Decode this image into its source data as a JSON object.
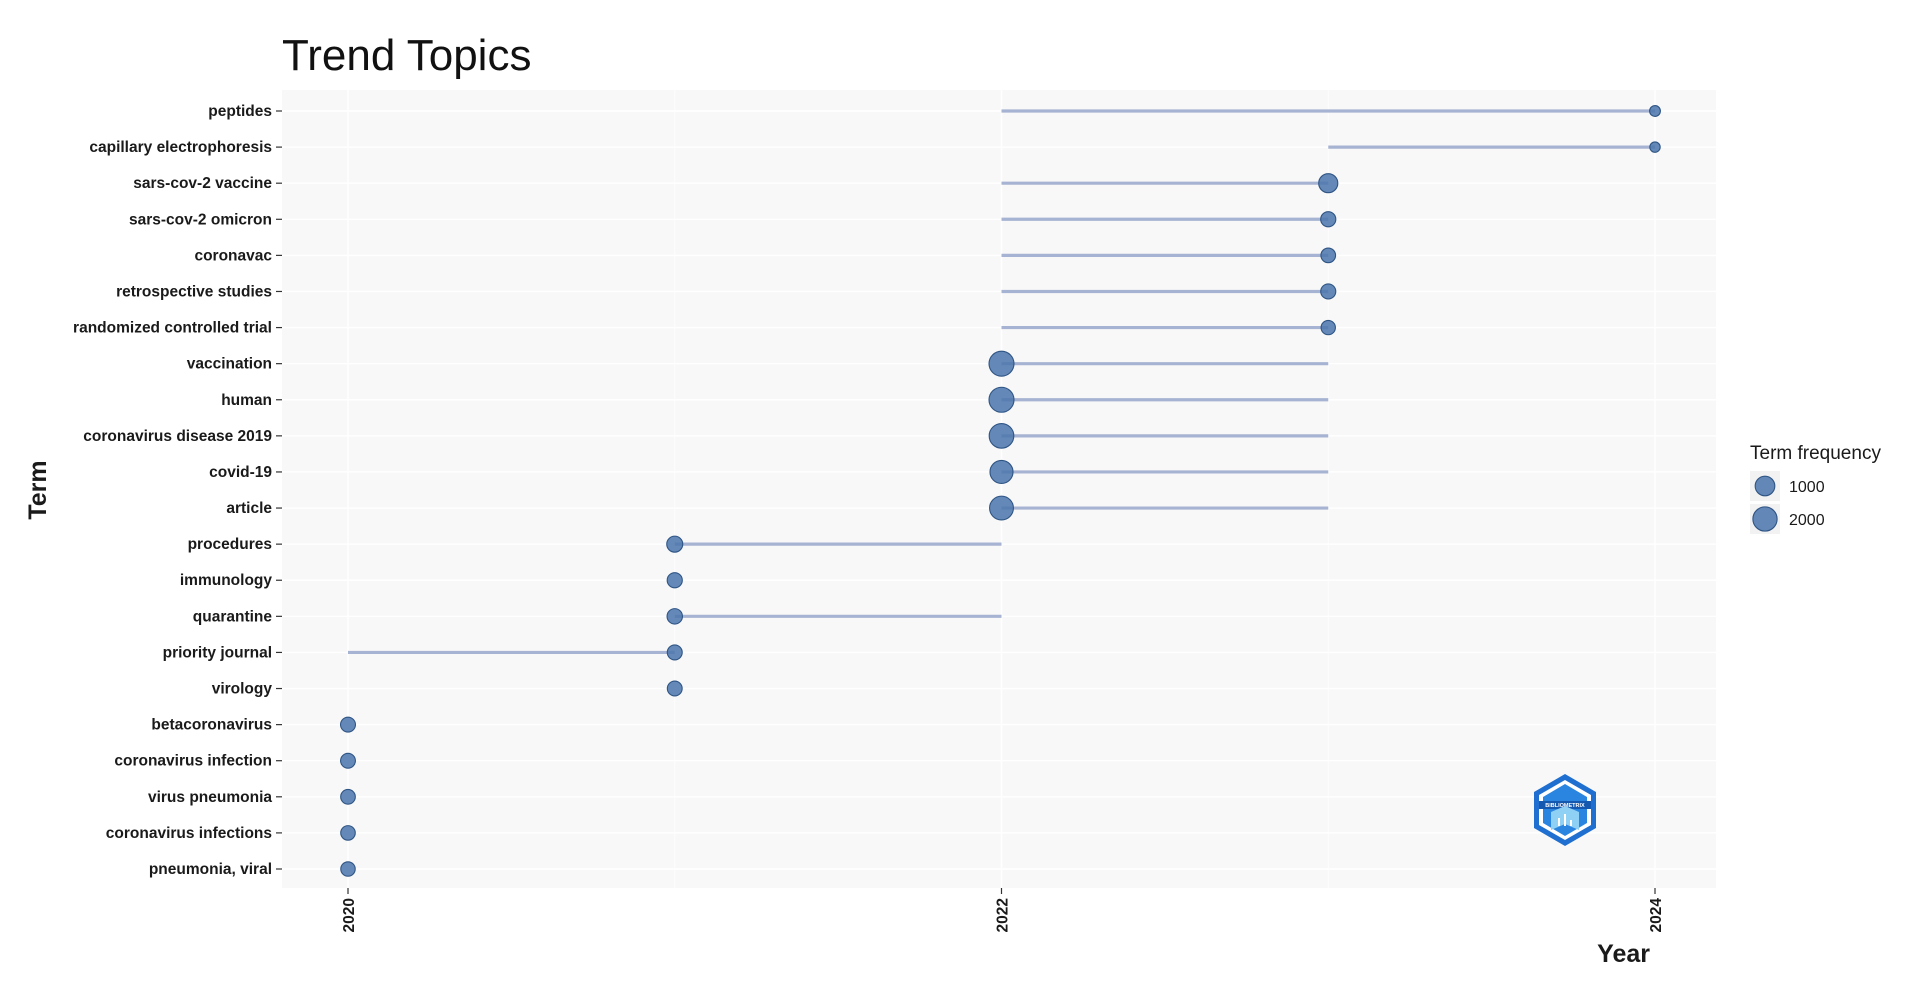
{
  "chart_data": {
    "type": "scatter",
    "title": "Trend Topics",
    "xlabel": "Year",
    "ylabel": "Term",
    "xlim": [
      2019.8,
      2024.2
    ],
    "x_ticks": [
      2020,
      2022,
      2024
    ],
    "x_tick_labels": [
      "2020",
      "2022",
      "2024"
    ],
    "grid": true,
    "legend_placement": "right",
    "legend": {
      "title": "Term frequency",
      "entries": [
        {
          "label": "1000",
          "value": 1000
        },
        {
          "label": "2000",
          "value": 2000
        }
      ]
    },
    "terms": [
      {
        "term": "peptides",
        "q1": 2022,
        "median": 2024,
        "q3": 2024,
        "freq": 40
      },
      {
        "term": "capillary electrophoresis",
        "q1": 2023,
        "median": 2024,
        "q3": 2024,
        "freq": 25
      },
      {
        "term": "sars-cov-2 vaccine",
        "q1": 2022,
        "median": 2023,
        "q3": 2023,
        "freq": 900
      },
      {
        "term": "sars-cov-2 omicron",
        "q1": 2022,
        "median": 2023,
        "q3": 2023,
        "freq": 350
      },
      {
        "term": "coronavac",
        "q1": 2022,
        "median": 2023,
        "q3": 2023,
        "freq": 300
      },
      {
        "term": "retrospective studies",
        "q1": 2022,
        "median": 2023,
        "q3": 2023,
        "freq": 340
      },
      {
        "term": "randomized controlled trial",
        "q1": 2022,
        "median": 2023,
        "q3": 2023,
        "freq": 270
      },
      {
        "term": "vaccination",
        "q1": 2022,
        "median": 2022,
        "q3": 2023,
        "freq": 2200
      },
      {
        "term": "human",
        "q1": 2022,
        "median": 2022,
        "q3": 2023,
        "freq": 2200
      },
      {
        "term": "coronavirus disease 2019",
        "q1": 2022,
        "median": 2022,
        "q3": 2023,
        "freq": 2100
      },
      {
        "term": "covid-19",
        "q1": 2022,
        "median": 2022,
        "q3": 2023,
        "freq": 1700
      },
      {
        "term": "article",
        "q1": 2022,
        "median": 2022,
        "q3": 2023,
        "freq": 1900
      },
      {
        "term": "procedures",
        "q1": 2021,
        "median": 2021,
        "q3": 2022,
        "freq": 450
      },
      {
        "term": "immunology",
        "q1": 2021,
        "median": 2021,
        "q3": 2021,
        "freq": 350
      },
      {
        "term": "quarantine",
        "q1": 2021,
        "median": 2021,
        "q3": 2022,
        "freq": 380
      },
      {
        "term": "priority journal",
        "q1": 2020,
        "median": 2021,
        "q3": 2021,
        "freq": 330
      },
      {
        "term": "virology",
        "q1": 2021,
        "median": 2021,
        "q3": 2021,
        "freq": 320
      },
      {
        "term": "betacoronavirus",
        "q1": 2020,
        "median": 2020,
        "q3": 2020,
        "freq": 330
      },
      {
        "term": "coronavirus infection",
        "q1": 2020,
        "median": 2020,
        "q3": 2020,
        "freq": 320
      },
      {
        "term": "virus pneumonia",
        "q1": 2020,
        "median": 2020,
        "q3": 2020,
        "freq": 300
      },
      {
        "term": "coronavirus infections",
        "q1": 2020,
        "median": 2020,
        "q3": 2020,
        "freq": 290
      },
      {
        "term": "pneumonia, viral",
        "q1": 2020,
        "median": 2020,
        "q3": 2020,
        "freq": 280
      }
    ]
  },
  "colors": {
    "point_fill": "#4f78ad",
    "point_stroke": "#2f5585",
    "segment": "#a7b3d2",
    "panel_bg": "#f8f8f8",
    "grid": "#ffffff",
    "logo_primary": "#1e6fd0",
    "logo_light": "#8fd0f5"
  },
  "logo": {
    "icon": "bibliometrix-hexagon-logo",
    "text": "BIBLIOMETRIX"
  }
}
